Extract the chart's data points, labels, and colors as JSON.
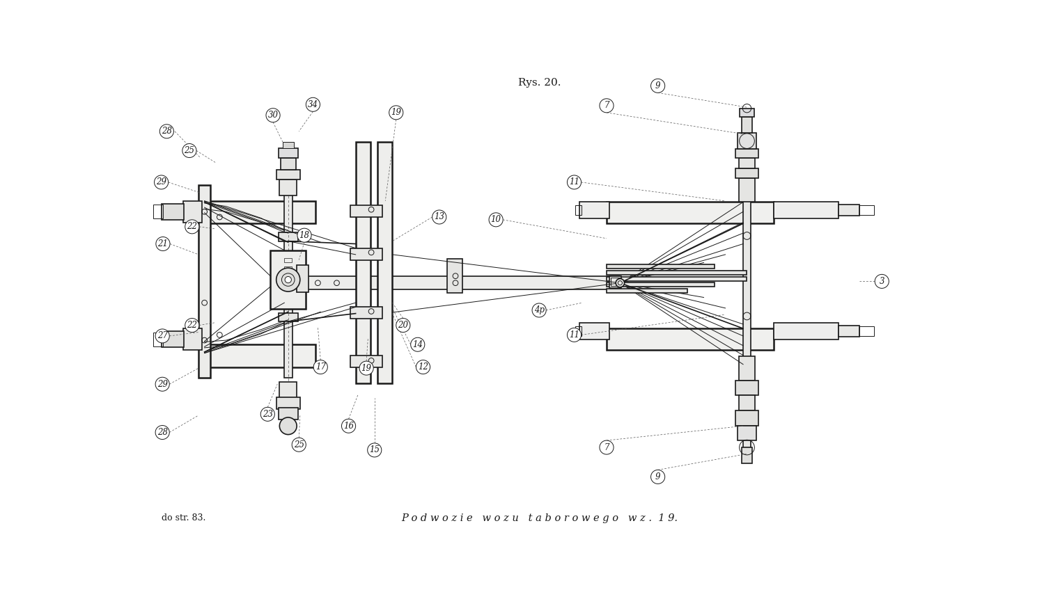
{
  "title": "Rys. 20.",
  "subtitle": "P o d w o z i e   w o z u   t a b o r o w e g o   w z .  1 9.",
  "footer": "do str. 83.",
  "bg_color": "#ffffff",
  "line_color": "#1a1a1a",
  "dashed_color": "#555555",
  "label_color": "#1a1a1a",
  "figsize": [
    15.12,
    8.61
  ],
  "dpi": 100
}
